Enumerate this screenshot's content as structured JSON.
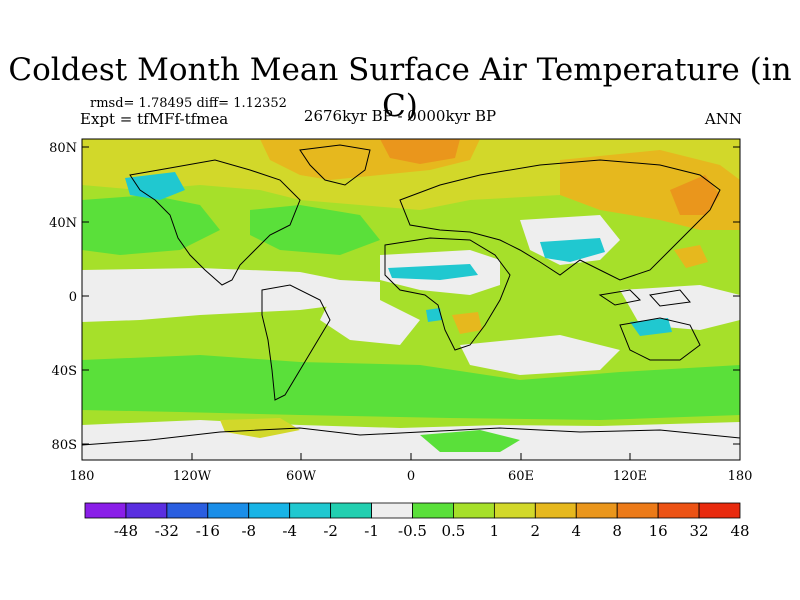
{
  "title": "Coldest Month Mean Surface Air Temperature (in C)",
  "stats_line": "rmsd= 1.78495 diff= 1.12352",
  "expt_line": "Expt = tfMFf-tfmea",
  "period_line": "2676kyr BP - 0000kyr BP",
  "season_label": "ANN",
  "lat_labels": [
    "80N",
    "40N",
    "0",
    "40S",
    "80S"
  ],
  "lon_labels": [
    "180",
    "120W",
    "60W",
    "0",
    "60E",
    "120E",
    "180"
  ],
  "colorbar": {
    "labels": [
      "-48",
      "-32",
      "-16",
      "-8",
      "-4",
      "-2",
      "-1",
      "-0.5",
      "0.5",
      "1",
      "2",
      "4",
      "8",
      "16",
      "32",
      "48"
    ],
    "colors": [
      "#8a1ee8",
      "#5a2ee0",
      "#2a5ee0",
      "#1a8ee8",
      "#18b4e6",
      "#20c8d0",
      "#22cfb0",
      "#eeeeee",
      "#5ae03a",
      "#a6e02a",
      "#d2d82a",
      "#e6b81e",
      "#ea961c",
      "#ec7a18",
      "#ec5214",
      "#e82a0e"
    ]
  },
  "map_colors": {
    "land_lines": "#000000",
    "neutral": "#eeeeee",
    "green": "#5ae03a",
    "lightgreen": "#a6e02a",
    "yellow": "#d2d82a",
    "orange": "#e6b81e",
    "darkorange": "#ea961c",
    "cyan": "#20c8d0"
  }
}
